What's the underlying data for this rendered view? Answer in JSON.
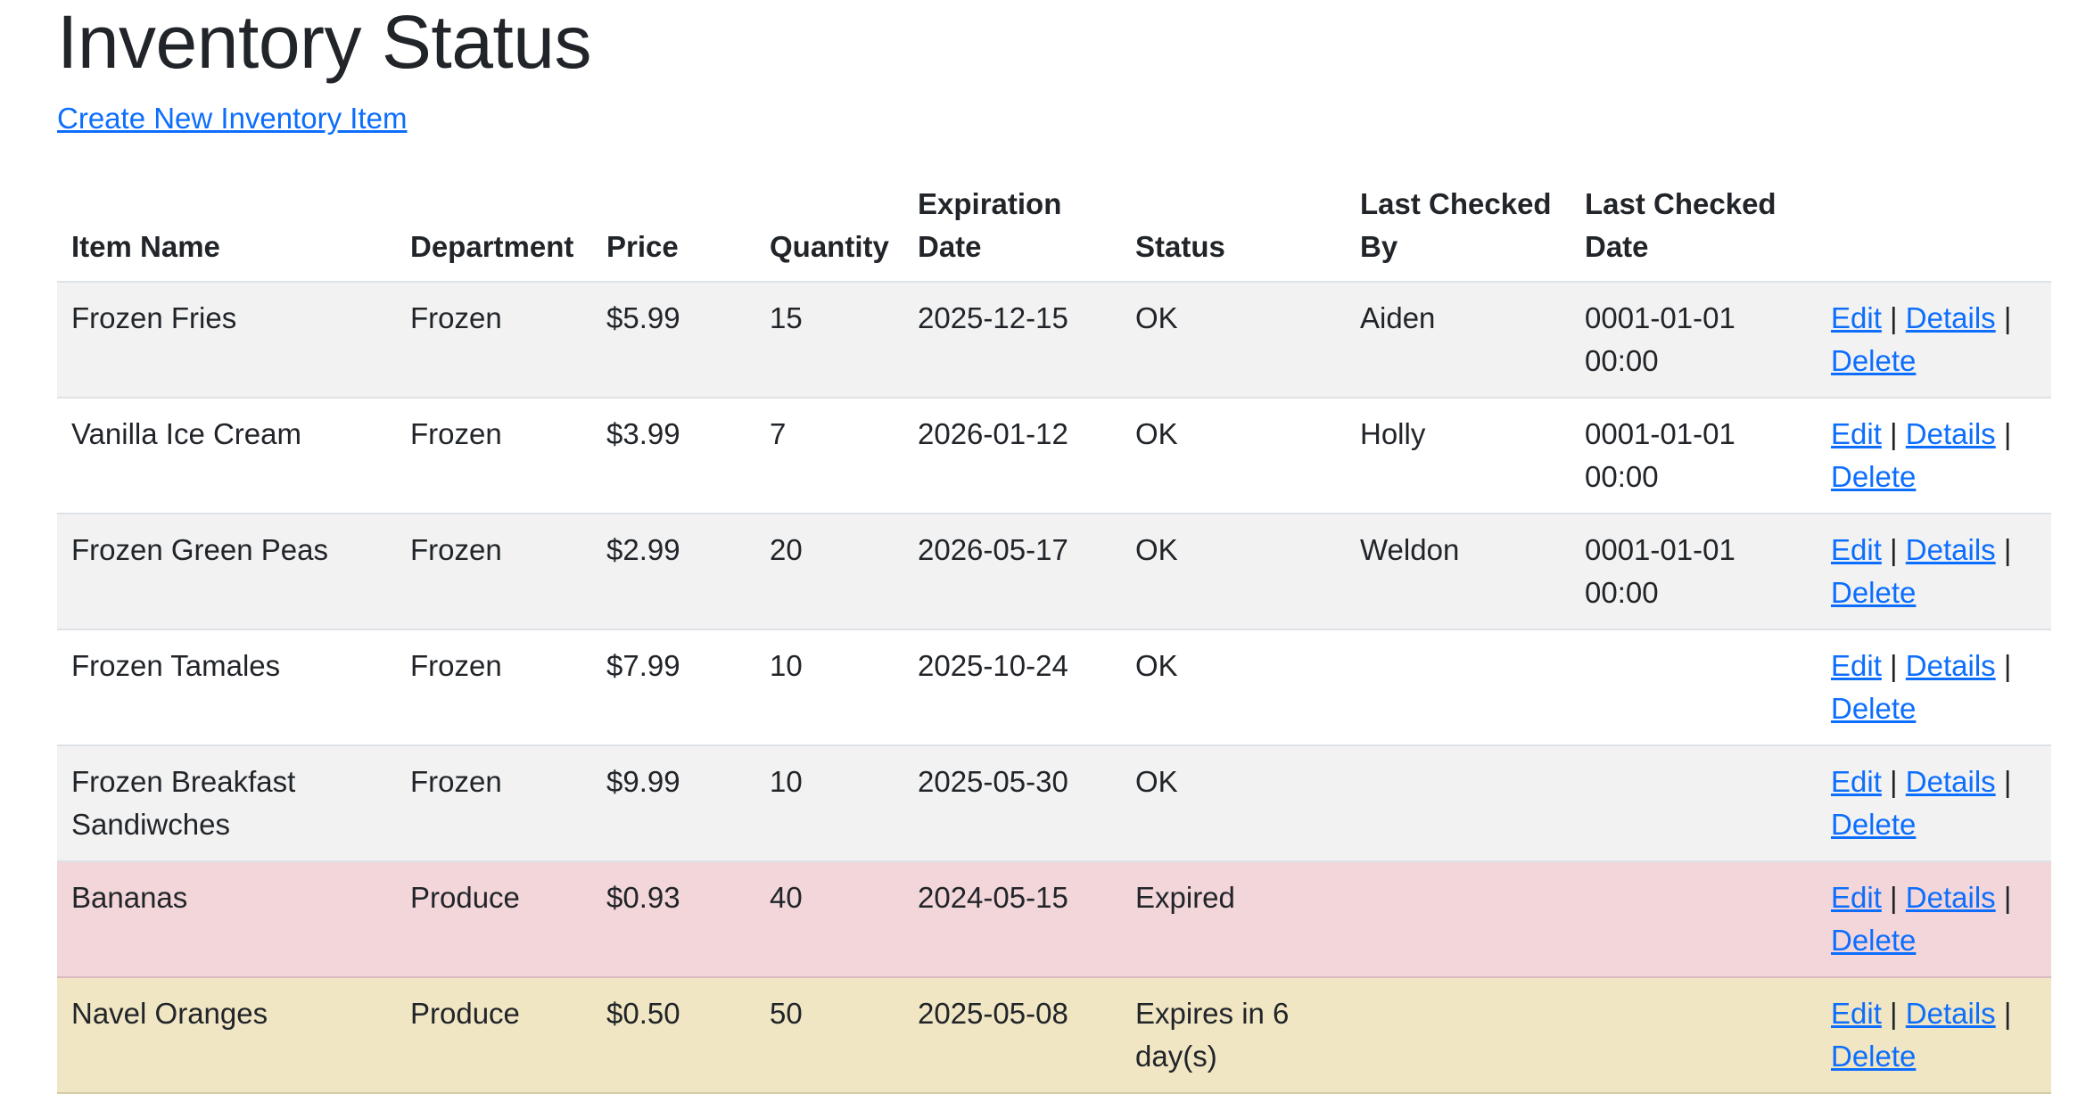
{
  "page": {
    "title": "Inventory Status",
    "create_link": "Create New Inventory Item"
  },
  "table": {
    "headers": {
      "item_name": "Item Name",
      "department": "Department",
      "price": "Price",
      "quantity": "Quantity",
      "expiration_date": "Expiration Date",
      "status": "Status",
      "last_checked_by": "Last Checked By",
      "last_checked_date": "Last Checked Date"
    },
    "actions": {
      "edit": "Edit",
      "details": "Details",
      "delete": "Delete",
      "separator": "|"
    },
    "rows": [
      {
        "name": "Frozen Fries",
        "department": "Frozen",
        "price": "$5.99",
        "quantity": "15",
        "expiration": "2025-12-15",
        "status": "OK",
        "checked_by": "Aiden",
        "checked_date": "0001-01-01 00:00",
        "highlight": "none"
      },
      {
        "name": "Vanilla Ice Cream",
        "department": "Frozen",
        "price": "$3.99",
        "quantity": "7",
        "expiration": "2026-01-12",
        "status": "OK",
        "checked_by": "Holly",
        "checked_date": "0001-01-01 00:00",
        "highlight": "none"
      },
      {
        "name": "Frozen Green Peas",
        "department": "Frozen",
        "price": "$2.99",
        "quantity": "20",
        "expiration": "2026-05-17",
        "status": "OK",
        "checked_by": "Weldon",
        "checked_date": "0001-01-01 00:00",
        "highlight": "none"
      },
      {
        "name": "Frozen Tamales",
        "department": "Frozen",
        "price": "$7.99",
        "quantity": "10",
        "expiration": "2025-10-24",
        "status": "OK",
        "checked_by": "",
        "checked_date": "",
        "highlight": "none"
      },
      {
        "name": "Frozen Breakfast Sandiwches",
        "department": "Frozen",
        "price": "$9.99",
        "quantity": "10",
        "expiration": "2025-05-30",
        "status": "OK",
        "checked_by": "",
        "checked_date": "",
        "highlight": "none"
      },
      {
        "name": "Bananas",
        "department": "Produce",
        "price": "$0.93",
        "quantity": "40",
        "expiration": "2024-05-15",
        "status": "Expired",
        "checked_by": "",
        "checked_date": "",
        "highlight": "danger"
      },
      {
        "name": "Navel Oranges",
        "department": "Produce",
        "price": "$0.50",
        "quantity": "50",
        "expiration": "2025-05-08",
        "status": "Expires in 6 day(s)",
        "checked_by": "",
        "checked_date": "",
        "highlight": "warning"
      }
    ]
  },
  "colors": {
    "link": "#0d6efd",
    "stripe": "#f2f2f2",
    "danger_row": "#f3d6da",
    "warning_row": "#f1e6c4"
  }
}
